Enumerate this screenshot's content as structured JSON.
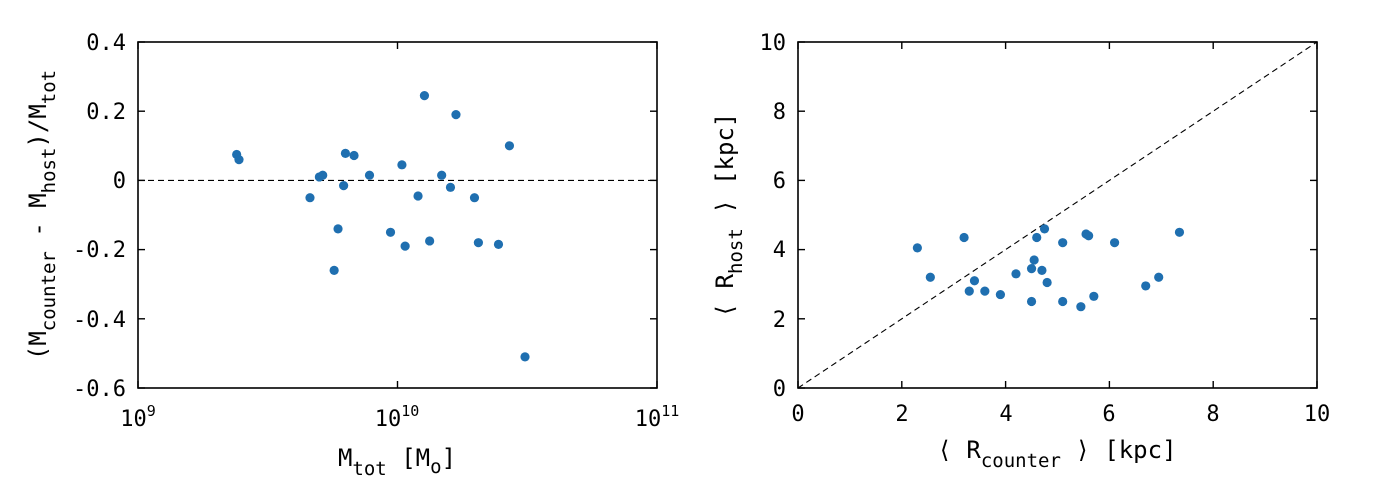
{
  "colors": {
    "points": "#1f6fb0",
    "axes": "#000000"
  },
  "chart_data": [
    {
      "type": "scatter",
      "xscale": "log",
      "xlim": [
        1000000000.0,
        100000000000.0
      ],
      "ylim": [
        -0.6,
        0.4
      ],
      "grid": false,
      "xlabel": {
        "main": "M",
        "sub": "tot",
        "unit_open": " [M",
        "unit_sub": "o",
        "unit_close": "]"
      },
      "ylabel": {
        "p1": "(M",
        "s1": "counter",
        "p2": " - M",
        "s2": "host",
        "p3": ")/M",
        "s3": "tot"
      },
      "xticks": [
        {
          "value": 1000000000.0,
          "base": "10",
          "exp": "9"
        },
        {
          "value": 10000000000.0,
          "base": "10",
          "exp": "10"
        },
        {
          "value": 100000000000.0,
          "base": "10",
          "exp": "11"
        }
      ],
      "yticks": [
        {
          "value": 0.4,
          "label": "0.4"
        },
        {
          "value": 0.2,
          "label": "0.2"
        },
        {
          "value": 0,
          "label": "0"
        },
        {
          "value": -0.2,
          "label": "-0.2"
        },
        {
          "value": -0.4,
          "label": "-0.4"
        },
        {
          "value": -0.6,
          "label": "-0.6"
        }
      ],
      "reference_line": {
        "type": "horizontal",
        "y": 0,
        "style": "dashed"
      },
      "points": [
        {
          "x": 2400000000.0,
          "y": 0.075
        },
        {
          "x": 2450000000.0,
          "y": 0.06
        },
        {
          "x": 4600000000.0,
          "y": -0.05
        },
        {
          "x": 5000000000.0,
          "y": 0.01
        },
        {
          "x": 5150000000.0,
          "y": 0.015
        },
        {
          "x": 5700000000.0,
          "y": -0.26
        },
        {
          "x": 5900000000.0,
          "y": -0.14
        },
        {
          "x": 6200000000.0,
          "y": -0.015
        },
        {
          "x": 6300000000.0,
          "y": 0.078
        },
        {
          "x": 6800000000.0,
          "y": 0.072
        },
        {
          "x": 7800000000.0,
          "y": 0.015
        },
        {
          "x": 9400000000.0,
          "y": -0.15
        },
        {
          "x": 10400000000.0,
          "y": 0.045
        },
        {
          "x": 10700000000.0,
          "y": -0.19
        },
        {
          "x": 12000000000.0,
          "y": -0.045
        },
        {
          "x": 12700000000.0,
          "y": 0.245
        },
        {
          "x": 13300000000.0,
          "y": -0.175
        },
        {
          "x": 14800000000.0,
          "y": 0.015
        },
        {
          "x": 16000000000.0,
          "y": -0.02
        },
        {
          "x": 16800000000.0,
          "y": 0.19
        },
        {
          "x": 19800000000.0,
          "y": -0.05
        },
        {
          "x": 20500000000.0,
          "y": -0.18
        },
        {
          "x": 24500000000.0,
          "y": -0.185
        },
        {
          "x": 27000000000.0,
          "y": 0.1
        },
        {
          "x": 31000000000.0,
          "y": -0.51
        }
      ]
    },
    {
      "type": "scatter",
      "xlim": [
        0,
        10
      ],
      "ylim": [
        0,
        10
      ],
      "grid": false,
      "xlabel": {
        "open": "⟨ R",
        "sub": "counter",
        "close": " ⟩ [kpc]"
      },
      "ylabel": {
        "open": "⟨ R",
        "sub": "host",
        "close": " ⟩ [kpc]"
      },
      "xticks": [
        {
          "value": 0,
          "label": "0"
        },
        {
          "value": 2,
          "label": "2"
        },
        {
          "value": 4,
          "label": "4"
        },
        {
          "value": 6,
          "label": "6"
        },
        {
          "value": 8,
          "label": "8"
        },
        {
          "value": 10,
          "label": "10"
        }
      ],
      "yticks": [
        {
          "value": 0,
          "label": "0"
        },
        {
          "value": 2,
          "label": "2"
        },
        {
          "value": 4,
          "label": "4"
        },
        {
          "value": 6,
          "label": "6"
        },
        {
          "value": 8,
          "label": "8"
        },
        {
          "value": 10,
          "label": "10"
        }
      ],
      "reference_line": {
        "type": "one-to-one",
        "style": "dashed"
      },
      "points": [
        {
          "x": 2.3,
          "y": 4.05
        },
        {
          "x": 2.55,
          "y": 3.2
        },
        {
          "x": 3.2,
          "y": 4.35
        },
        {
          "x": 3.3,
          "y": 2.8
        },
        {
          "x": 3.4,
          "y": 3.1
        },
        {
          "x": 3.6,
          "y": 2.8
        },
        {
          "x": 3.9,
          "y": 2.7
        },
        {
          "x": 4.2,
          "y": 3.3
        },
        {
          "x": 4.5,
          "y": 3.45
        },
        {
          "x": 4.5,
          "y": 2.5
        },
        {
          "x": 4.55,
          "y": 3.7
        },
        {
          "x": 4.6,
          "y": 4.35
        },
        {
          "x": 4.7,
          "y": 3.4
        },
        {
          "x": 4.75,
          "y": 4.6
        },
        {
          "x": 4.8,
          "y": 3.05
        },
        {
          "x": 5.1,
          "y": 2.5
        },
        {
          "x": 5.1,
          "y": 4.2
        },
        {
          "x": 5.45,
          "y": 2.35
        },
        {
          "x": 5.55,
          "y": 4.45
        },
        {
          "x": 5.6,
          "y": 4.4
        },
        {
          "x": 5.7,
          "y": 2.65
        },
        {
          "x": 6.1,
          "y": 4.2
        },
        {
          "x": 6.7,
          "y": 2.95
        },
        {
          "x": 6.95,
          "y": 3.2
        },
        {
          "x": 7.35,
          "y": 4.5
        }
      ]
    }
  ]
}
